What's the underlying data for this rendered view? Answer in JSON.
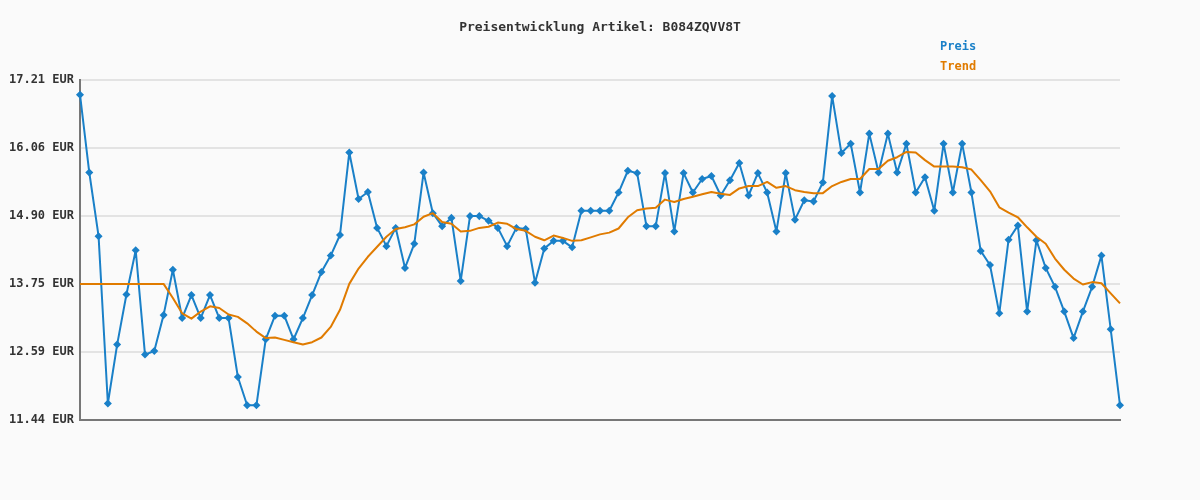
{
  "chart_data": {
    "type": "line",
    "title": "Preisentwicklung Artikel: B084ZQVV8T",
    "categories": [
      null,
      null,
      null,
      null,
      null,
      null,
      null,
      null,
      null,
      null,
      null,
      null,
      null,
      null,
      null,
      null,
      null,
      null,
      null,
      null,
      null,
      null,
      null,
      null,
      null,
      null,
      null,
      null,
      null,
      null,
      null,
      null,
      null,
      null,
      null,
      null,
      null,
      null,
      null,
      null,
      null,
      null,
      null,
      null,
      null,
      null,
      null,
      null,
      null,
      null,
      null,
      null,
      null,
      null,
      null,
      null,
      null,
      null,
      null,
      null,
      null,
      null,
      null,
      null,
      null,
      null,
      null,
      null,
      null,
      null,
      null,
      null,
      null,
      null,
      null,
      null,
      null,
      null,
      null,
      null,
      null,
      null,
      null,
      null,
      null,
      null,
      null,
      null,
      null,
      null,
      null,
      null,
      null,
      null,
      null,
      null,
      null,
      null,
      null,
      null,
      null,
      null,
      null,
      null,
      null,
      null,
      null,
      null,
      null,
      null,
      null,
      null,
      null
    ],
    "series": [
      {
        "name": "Preis",
        "color": "#1a80c8",
        "marker": "diamond",
        "values": [
          16.96,
          15.64,
          14.56,
          11.72,
          12.72,
          13.57,
          14.32,
          12.55,
          12.61,
          13.22,
          13.99,
          13.17,
          13.56,
          13.17,
          13.56,
          13.17,
          13.17,
          12.17,
          11.69,
          11.69,
          12.81,
          13.21,
          13.21,
          12.81,
          13.17,
          13.56,
          13.95,
          14.23,
          14.58,
          15.98,
          15.19,
          15.31,
          14.7,
          14.39,
          14.7,
          14.02,
          14.43,
          15.64,
          14.95,
          14.73,
          14.87,
          13.8,
          14.9,
          14.9,
          14.82,
          14.7,
          14.39,
          14.7,
          14.68,
          13.77,
          14.35,
          14.48,
          14.48,
          14.37,
          14.99,
          14.99,
          14.99,
          14.99,
          15.3,
          15.67,
          15.63,
          14.73,
          14.73,
          15.63,
          14.64,
          15.63,
          15.3,
          15.53,
          15.58,
          15.25,
          15.51,
          15.8,
          15.25,
          15.63,
          15.3,
          14.64,
          15.63,
          14.84,
          15.17,
          15.15,
          15.47,
          16.94,
          15.97,
          16.13,
          15.3,
          16.3,
          15.64,
          16.3,
          15.64,
          16.13,
          15.3,
          15.56,
          14.99,
          16.13,
          15.3,
          16.13,
          15.3,
          14.31,
          14.07,
          13.25,
          14.5,
          14.74,
          13.28,
          14.49,
          14.02,
          13.7,
          13.28,
          12.83,
          13.28,
          13.7,
          14.23,
          12.98,
          11.69
        ]
      },
      {
        "name": "Trend",
        "color": "#e07b00",
        "marker": "none",
        "values": [
          13.75,
          13.75,
          13.75,
          13.75,
          13.75,
          13.75,
          13.75,
          13.75,
          13.75,
          13.75,
          13.51,
          13.25,
          13.16,
          13.28,
          13.37,
          13.34,
          13.23,
          13.19,
          13.08,
          12.94,
          12.83,
          12.84,
          12.8,
          12.76,
          12.72,
          12.76,
          12.84,
          13.02,
          13.31,
          13.75,
          14.01,
          14.21,
          14.38,
          14.55,
          14.68,
          14.71,
          14.76,
          14.89,
          14.95,
          14.8,
          14.77,
          14.64,
          14.65,
          14.7,
          14.72,
          14.79,
          14.77,
          14.68,
          14.65,
          14.55,
          14.49,
          14.57,
          14.53,
          14.48,
          14.49,
          14.54,
          14.59,
          14.62,
          14.69,
          14.88,
          15,
          15.03,
          15.04,
          15.18,
          15.14,
          15.19,
          15.23,
          15.27,
          15.31,
          15.28,
          15.26,
          15.37,
          15.41,
          15.41,
          15.48,
          15.38,
          15.41,
          15.34,
          15.31,
          15.29,
          15.29,
          15.41,
          15.48,
          15.53,
          15.53,
          15.7,
          15.7,
          15.84,
          15.9,
          15.99,
          15.98,
          15.85,
          15.74,
          15.74,
          15.74,
          15.73,
          15.69,
          15.51,
          15.32,
          15.05,
          14.96,
          14.88,
          14.71,
          14.55,
          14.43,
          14.18,
          13.99,
          13.84,
          13.74,
          13.78,
          13.76,
          13.59,
          13.42
        ]
      }
    ],
    "ylim": [
      11.44,
      17.21
    ],
    "yticks": [
      {
        "value": 11.44,
        "label": "11.44 EUR"
      },
      {
        "value": 12.59,
        "label": "12.59 EUR"
      },
      {
        "value": 13.75,
        "label": "13.75 EUR"
      },
      {
        "value": 14.9,
        "label": "14.90 EUR"
      },
      {
        "value": 16.06,
        "label": "16.06 EUR"
      },
      {
        "value": 17.21,
        "label": "17.21 EUR"
      }
    ],
    "grid": "y",
    "legend": "top right"
  }
}
